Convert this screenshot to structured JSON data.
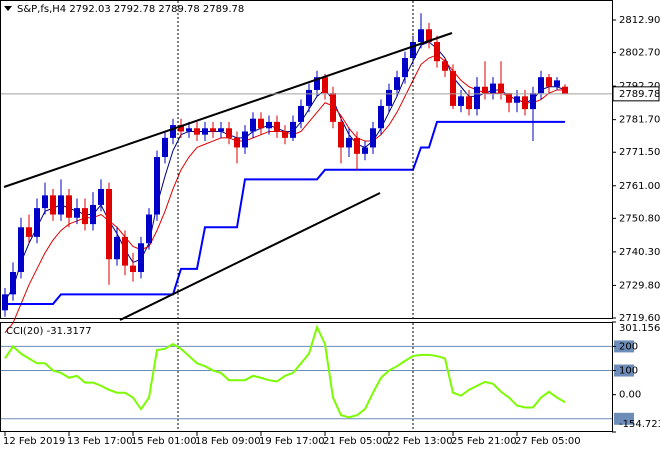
{
  "chart_data": {
    "type": "candlestick",
    "title": "S&P,fs,H4  2792.03 2792.78 2789.78 2789.78",
    "x_labels": [
      "12 Feb 2019",
      "13 Feb 17:00",
      "15 Feb 01:00",
      "18 Feb 09:00",
      "19 Feb 17:00",
      "21 Feb 05:00",
      "22 Feb 13:00",
      "25 Feb 21:00",
      "27 Feb 05:00"
    ],
    "open": [
      2722,
      2727,
      2734,
      2748,
      2745,
      2754,
      2758,
      2752,
      2758,
      2751,
      2754,
      2749,
      2755,
      2760,
      2738,
      2745,
      2736,
      2734,
      2743,
      2752,
      2770,
      2776,
      2780,
      2778,
      2779,
      2777,
      2779,
      2778,
      2779,
      2776,
      2773,
      2778,
      2782,
      2779,
      2781,
      2778,
      2776,
      2781,
      2786,
      2791,
      2795,
      2790,
      2781,
      2773,
      2776,
      2771,
      2773,
      2779,
      2786,
      2791,
      2795,
      2801,
      2806,
      2810,
      2806,
      2800,
      2797,
      2786,
      2789,
      2785,
      2792,
      2790,
      2793,
      2790,
      2787,
      2789,
      2785,
      2790,
      2795,
      2792,
      2792.03
    ],
    "high": [
      2729,
      2737,
      2751,
      2752,
      2757,
      2762,
      2760,
      2763,
      2760,
      2757,
      2757,
      2759,
      2763,
      2762,
      2748,
      2747,
      2740,
      2745,
      2754,
      2772,
      2778,
      2782,
      2782,
      2781,
      2781,
      2781,
      2781,
      2781,
      2781,
      2778,
      2780,
      2784,
      2784,
      2783,
      2783,
      2780,
      2783,
      2788,
      2793,
      2797,
      2796,
      2792,
      2783,
      2779,
      2778,
      2775,
      2781,
      2788,
      2793,
      2797,
      2803,
      2808,
      2815,
      2812,
      2808,
      2801,
      2799,
      2791,
      2791,
      2795,
      2800,
      2795,
      2800,
      2790,
      2791,
      2791,
      2792,
      2797,
      2796,
      2795,
      2792.78
    ],
    "low": [
      2720,
      2725,
      2732,
      2743,
      2743,
      2752,
      2750,
      2750,
      2748,
      2749,
      2747,
      2747,
      2753,
      2730,
      2736,
      2733,
      2731,
      2732,
      2741,
      2750,
      2768,
      2774,
      2776,
      2776,
      2775,
      2775,
      2776,
      2776,
      2774,
      2768,
      2771,
      2776,
      2777,
      2777,
      2776,
      2774,
      2775,
      2779,
      2784,
      2789,
      2788,
      2779,
      2768,
      2770,
      2766,
      2769,
      2771,
      2777,
      2784,
      2789,
      2793,
      2799,
      2804,
      2804,
      2798,
      2795,
      2785,
      2784,
      2783,
      2783,
      2788,
      2788,
      2788,
      2784,
      2784,
      2783,
      2775,
      2788,
      2790,
      2791,
      2789.78
    ],
    "close": [
      2727,
      2734,
      2748,
      2745,
      2754,
      2758,
      2752,
      2758,
      2751,
      2754,
      2749,
      2755,
      2760,
      2738,
      2745,
      2736,
      2734,
      2743,
      2752,
      2770,
      2776,
      2780,
      2778,
      2779,
      2777,
      2779,
      2778,
      2779,
      2776,
      2773,
      2778,
      2782,
      2779,
      2781,
      2778,
      2776,
      2781,
      2786,
      2791,
      2795,
      2790,
      2781,
      2773,
      2776,
      2771,
      2773,
      2779,
      2786,
      2791,
      2795,
      2801,
      2806,
      2810,
      2806,
      2800,
      2797,
      2786,
      2789,
      2785,
      2792,
      2790,
      2793,
      2790,
      2787,
      2789,
      2785,
      2790,
      2795,
      2792,
      2794,
      2789.78
    ],
    "up_color": "#0000c8",
    "down_color": "#e00000",
    "overlays": [
      {
        "color": "#000080",
        "width": 1,
        "values": [
          2725,
          2729,
          2737,
          2743,
          2748,
          2753,
          2754,
          2755,
          2754,
          2753,
          2752,
          2752,
          2755,
          2750,
          2746,
          2741,
          2737,
          2738,
          2743,
          2755,
          2764,
          2772,
          2777,
          2778,
          2778,
          2778,
          2778,
          2778,
          2777,
          2776,
          2776,
          2778,
          2779,
          2780,
          2779,
          2778,
          2778,
          2781,
          2785,
          2789,
          2791,
          2788,
          2782,
          2777,
          2774,
          2773,
          2775,
          2779,
          2784,
          2789,
          2795,
          2800,
          2805,
          2806,
          2804,
          2801,
          2795,
          2792,
          2789,
          2789,
          2790,
          2791,
          2791,
          2789,
          2788,
          2787,
          2788,
          2791,
          2792,
          2792,
          2791
        ]
      },
      {
        "color": "#e00000",
        "width": 1,
        "values": [
          2715,
          2718,
          2724,
          2730,
          2735,
          2740,
          2744,
          2747,
          2749,
          2750,
          2751,
          2751,
          2752,
          2750,
          2748,
          2745,
          2742,
          2741,
          2742,
          2747,
          2753,
          2760,
          2766,
          2770,
          2773,
          2774,
          2775,
          2776,
          2776,
          2775,
          2775,
          2776,
          2777,
          2778,
          2778,
          2778,
          2777,
          2778,
          2781,
          2784,
          2787,
          2786,
          2783,
          2779,
          2776,
          2775,
          2775,
          2777,
          2780,
          2784,
          2789,
          2794,
          2799,
          2801,
          2802,
          2800,
          2797,
          2794,
          2792,
          2791,
          2790,
          2790,
          2790,
          2789,
          2788,
          2787,
          2787,
          2788,
          2790,
          2791,
          2791
        ]
      },
      {
        "color": "#0000ff",
        "width": 2,
        "values": [
          2724,
          2724,
          2724,
          2724,
          2724,
          2724,
          2724,
          2727,
          2727,
          2727,
          2727,
          2727,
          2727,
          2727,
          2727,
          2727,
          2727,
          2727,
          2727,
          2727,
          2727,
          2727,
          2735,
          2735,
          2735,
          2748,
          2748,
          2748,
          2748,
          2748,
          2763,
          2763,
          2763,
          2763,
          2763,
          2763,
          2763,
          2763,
          2763,
          2763,
          2766,
          2766,
          2766,
          2766,
          2766,
          2766,
          2766,
          2766,
          2766,
          2766,
          2766,
          2766,
          2773,
          2773,
          2781,
          2781,
          2781,
          2781,
          2781,
          2781,
          2781,
          2781,
          2781,
          2781,
          2781,
          2781,
          2781,
          2781,
          2781,
          2781,
          2781
        ]
      }
    ],
    "last_price": 2789.78,
    "ylim": [
      2719.6,
      2818.85
    ],
    "yticks": [
      {
        "value": 2812.9,
        "label": "2812.90"
      },
      {
        "value": 2802.7,
        "label": "2802.70"
      },
      {
        "value": 2792.2,
        "label": "2792.20"
      },
      {
        "value": 2781.7,
        "label": "2781.70"
      },
      {
        "value": 2771.5,
        "label": "2771.50"
      },
      {
        "value": 2761,
        "label": "2761.00"
      },
      {
        "value": 2750.8,
        "label": "2750.80"
      },
      {
        "value": 2740.3,
        "label": "2740.30"
      },
      {
        "value": 2729.8,
        "label": "2729.80"
      },
      {
        "value": 2719.6,
        "label": "2719.60"
      }
    ],
    "indicator": {
      "name": "CCI(20)",
      "color": "#7cfc00",
      "level_color": "#6d8db8",
      "values": [
        150,
        200,
        170,
        150,
        130,
        130,
        100,
        90,
        70,
        78,
        50,
        50,
        37,
        20,
        8,
        8,
        -12,
        -60,
        -12,
        185,
        190,
        210,
        190,
        160,
        130,
        118,
        100,
        90,
        60,
        60,
        60,
        78,
        70,
        60,
        55,
        78,
        90,
        130,
        170,
        280,
        210,
        -12,
        -85,
        -94,
        -85,
        -60,
        8,
        70,
        100,
        118,
        140,
        160,
        165,
        165,
        160,
        150,
        8,
        -4,
        20,
        37,
        53,
        45,
        12,
        -12,
        -45,
        -53,
        -53,
        -12,
        12,
        -12,
        -31.3177
      ],
      "levels": [
        200,
        100,
        -100
      ],
      "ylim": [
        -154.7236,
        301.1562
      ],
      "yticks": [
        301.1562,
        200,
        100,
        {
          "value": 0,
          "label": "0.00"
        },
        -154.7236
      ]
    }
  }
}
